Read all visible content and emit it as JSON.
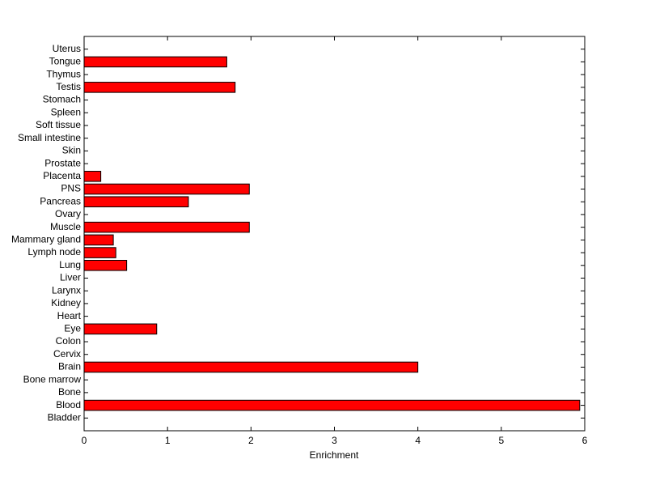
{
  "chart_data": {
    "type": "bar",
    "orientation": "horizontal",
    "x_label": "Enrichment",
    "categories": [
      "Bladder",
      "Blood",
      "Bone",
      "Bone marrow",
      "Brain",
      "Cervix",
      "Colon",
      "Eye",
      "Heart",
      "Kidney",
      "Larynx",
      "Liver",
      "Lung",
      "Lymph node",
      "Mammary gland",
      "Muscle",
      "Ovary",
      "Pancreas",
      "PNS",
      "Placenta",
      "Prostate",
      "Skin",
      "Small intestine",
      "Soft tissue",
      "Spleen",
      "Stomach",
      "Testis",
      "Thymus",
      "Tongue",
      "Uterus"
    ],
    "values": [
      0,
      5.94,
      0,
      0,
      4.0,
      0,
      0,
      0.87,
      0,
      0,
      0,
      0,
      0.51,
      0.38,
      0.35,
      1.98,
      0,
      1.25,
      1.98,
      0.2,
      0,
      0,
      0,
      0,
      0,
      0,
      1.81,
      0,
      1.71,
      0
    ],
    "color": "#ff0000",
    "xlim": [
      0,
      6
    ],
    "xticks": [
      0,
      1,
      2,
      3,
      4,
      5,
      6
    ]
  }
}
